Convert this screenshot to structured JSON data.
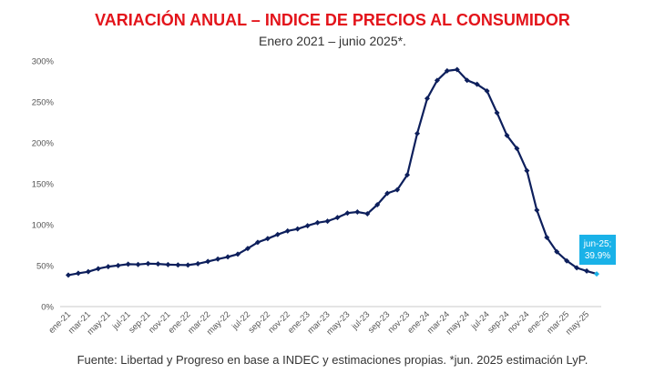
{
  "chart_data": {
    "type": "line",
    "title": "VARIACIÓN ANUAL – INDICE DE PRECIOS AL CONSUMIDOR",
    "subtitle": "Enero 2021 – junio 2025*.",
    "source": "Fuente: Libertad y Progreso en base a INDEC y estimaciones propias. *jun. 2025 estimación LyP.",
    "ylim": [
      0,
      300
    ],
    "yticks": [
      "0%",
      "50%",
      "100%",
      "150%",
      "200%",
      "250%",
      "300%"
    ],
    "ytick_values": [
      0,
      50,
      100,
      150,
      200,
      250,
      300
    ],
    "xtick_labels": [
      "ene-21",
      "mar-21",
      "may-21",
      "jul-21",
      "sep-21",
      "nov-21",
      "ene-22",
      "mar-22",
      "may-22",
      "jul-22",
      "sep-22",
      "nov-22",
      "ene-23",
      "mar-23",
      "may-23",
      "jul-23",
      "sep-23",
      "nov-23",
      "ene-24",
      "mar-24",
      "may-24",
      "jul-24",
      "sep-24",
      "nov-24",
      "ene-25",
      "mar-25",
      "may-25"
    ],
    "x": [
      "ene-21",
      "feb-21",
      "mar-21",
      "abr-21",
      "may-21",
      "jun-21",
      "jul-21",
      "ago-21",
      "sep-21",
      "oct-21",
      "nov-21",
      "dic-21",
      "ene-22",
      "feb-22",
      "mar-22",
      "abr-22",
      "may-22",
      "jun-22",
      "jul-22",
      "ago-22",
      "sep-22",
      "oct-22",
      "nov-22",
      "dic-22",
      "ene-23",
      "feb-23",
      "mar-23",
      "abr-23",
      "may-23",
      "jun-23",
      "jul-23",
      "ago-23",
      "sep-23",
      "oct-23",
      "nov-23",
      "dic-23",
      "ene-24",
      "feb-24",
      "mar-24",
      "abr-24",
      "may-24",
      "jun-24",
      "jul-24",
      "ago-24",
      "sep-24",
      "oct-24",
      "nov-24",
      "dic-24",
      "ene-25",
      "feb-25",
      "mar-25",
      "abr-25",
      "may-25",
      "jun-25"
    ],
    "values": [
      38.5,
      40.7,
      42.6,
      46.3,
      48.8,
      50.2,
      51.8,
      51.4,
      52.5,
      52.1,
      51.2,
      50.9,
      50.7,
      52.3,
      55.1,
      58.0,
      60.7,
      64.0,
      71.0,
      78.5,
      83.0,
      88.0,
      92.4,
      94.8,
      98.8,
      102.5,
      104.3,
      108.8,
      114.2,
      115.6,
      113.4,
      124.4,
      138.3,
      142.7,
      160.9,
      211.4,
      254.2,
      276.2,
      287.9,
      289.4,
      276.4,
      271.5,
      263.4,
      236.7,
      209.0,
      193.0,
      166.0,
      117.8,
      84.5,
      66.9,
      55.9,
      47.3,
      43.5,
      39.9
    ],
    "highlight": {
      "label": "jun-25;",
      "value_label": "39.9%",
      "value": 39.9,
      "color": "#1ab2e8"
    },
    "line_color": "#0d1f5c",
    "callout_color": "#1ab2e8"
  }
}
